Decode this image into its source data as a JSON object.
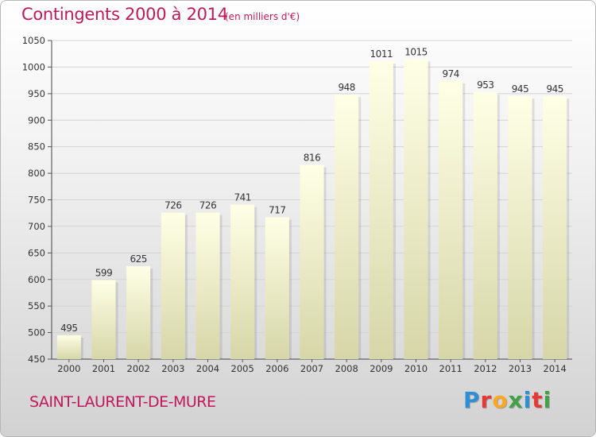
{
  "title": "Contingents 2000 à 2014",
  "subtitle": "(en milliers d'€)",
  "commune": "SAINT-LAURENT-DE-MURE",
  "logo": {
    "letters": [
      "P",
      "r",
      "o",
      "x",
      "i",
      "t",
      "i"
    ],
    "colors": [
      "#2e8fd6",
      "#e53935",
      "#f9a825",
      "#43a047",
      "#2e8fd6",
      "#e53935",
      "#43a047"
    ]
  },
  "chart_data": {
    "type": "bar",
    "categories": [
      "2000",
      "2001",
      "2002",
      "2003",
      "2004",
      "2005",
      "2006",
      "2007",
      "2008",
      "2009",
      "2010",
      "2011",
      "2012",
      "2013",
      "2014"
    ],
    "values": [
      495,
      599,
      625,
      726,
      726,
      741,
      717,
      816,
      948,
      1011,
      1015,
      974,
      953,
      945,
      945
    ],
    "data_labels": [
      "495",
      "599",
      "625",
      "726",
      "726",
      "741",
      "717",
      "816",
      "948",
      "1011",
      "1015",
      "974",
      "953",
      "945",
      "945"
    ],
    "yticks": [
      "450",
      "500",
      "550",
      "600",
      "650",
      "700",
      "750",
      "800",
      "850",
      "900",
      "950",
      "1000",
      "1050"
    ],
    "ylim": [
      450,
      1050
    ],
    "grid": true,
    "bar_color_top": "#ffffe6",
    "bar_color_bottom": "#d6d6a8"
  }
}
